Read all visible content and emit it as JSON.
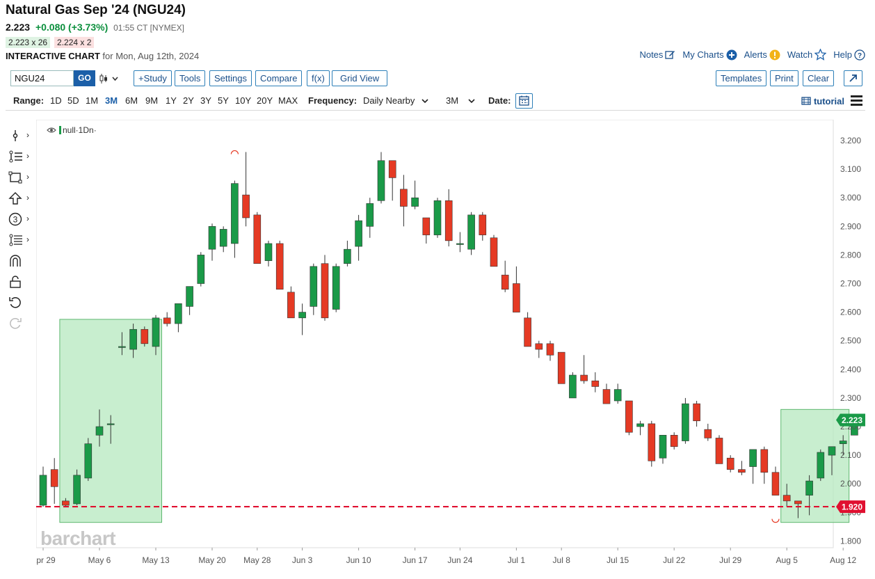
{
  "header": {
    "title": "Natural Gas Sep '24 (NGU24)",
    "last": "2.223",
    "change": "+0.080 (+3.73%)",
    "time_exchange": "01:55 CT [NYMEX]",
    "bid": "2.223 x 26",
    "ask": "2.224 x 2",
    "chart_label": "INTERACTIVE CHART",
    "chart_for": "for Mon, Aug 12th, 2024"
  },
  "top_links": [
    "Notes",
    "My Charts",
    "Alerts",
    "Watch",
    "Help"
  ],
  "toolbar": {
    "symbol": "NGU24",
    "go": "GO",
    "buttons": [
      "+Study",
      "Tools",
      "Settings",
      "Compare",
      "f(x)",
      "Grid View"
    ],
    "right_buttons": [
      "Templates",
      "Print",
      "Clear"
    ]
  },
  "range_bar": {
    "range_label": "Range:",
    "ranges": [
      "1D",
      "5D",
      "1M",
      "3M",
      "6M",
      "9M",
      "1Y",
      "2Y",
      "3Y",
      "5Y",
      "10Y",
      "20Y",
      "MAX"
    ],
    "active_range": "3M",
    "frequency_label": "Frequency:",
    "frequency": "Daily Nearby",
    "period": "3M",
    "date_label": "Date:",
    "tutorial": "tutorial"
  },
  "icons": {
    "left_tools": [
      "crosshair-icon",
      "trend-lines-icon",
      "shapes-icon",
      "arrow-up-icon",
      "counter-icon",
      "fibonacci-icon",
      "magnet-icon",
      "lock-icon",
      "undo-icon",
      "redo-icon"
    ]
  },
  "chart_data": {
    "type": "candlestick",
    "legend_label": "null·1Dn·",
    "watermark": "barchart",
    "colors": {
      "up": "#1a9a48",
      "down": "#e53a24",
      "last_price_bg": "#1a9a48",
      "support_line": "#e01030",
      "zone_fill": "#b6e8bf",
      "zone_border": "#5fb870"
    },
    "y_axis": {
      "min": 1.8,
      "max": 3.2,
      "ticks": [
        "3.200",
        "3.100",
        "3.000",
        "2.900",
        "2.800",
        "2.700",
        "2.600",
        "2.500",
        "2.400",
        "2.300",
        "2.200",
        "2.100",
        "2.000",
        "1.900",
        "1.800"
      ]
    },
    "x_axis_labels": [
      {
        "index": 0,
        "label": "Apr 29"
      },
      {
        "index": 5,
        "label": "May 6"
      },
      {
        "index": 10,
        "label": "May 13"
      },
      {
        "index": 15,
        "label": "May 20"
      },
      {
        "index": 19,
        "label": "May 28"
      },
      {
        "index": 23,
        "label": "Jun 3"
      },
      {
        "index": 28,
        "label": "Jun 10"
      },
      {
        "index": 33,
        "label": "Jun 17"
      },
      {
        "index": 37,
        "label": "Jun 24"
      },
      {
        "index": 42,
        "label": "Jul 1"
      },
      {
        "index": 46,
        "label": "Jul 8"
      },
      {
        "index": 51,
        "label": "Jul 15"
      },
      {
        "index": 56,
        "label": "Jul 22"
      },
      {
        "index": 61,
        "label": "Jul 29"
      },
      {
        "index": 66,
        "label": "Aug 5"
      },
      {
        "index": 71,
        "label": "Aug 12"
      }
    ],
    "candles": [
      {
        "o": 1.925,
        "h": 2.06,
        "l": 1.92,
        "c": 2.03
      },
      {
        "o": 2.05,
        "h": 2.09,
        "l": 1.93,
        "c": 1.99
      },
      {
        "o": 1.94,
        "h": 1.95,
        "l": 1.92,
        "c": 1.925
      },
      {
        "o": 1.93,
        "h": 2.05,
        "l": 1.925,
        "c": 2.03
      },
      {
        "o": 2.02,
        "h": 2.16,
        "l": 2.01,
        "c": 2.14
      },
      {
        "o": 2.17,
        "h": 2.26,
        "l": 2.13,
        "c": 2.2
      },
      {
        "o": 2.21,
        "h": 2.24,
        "l": 2.14,
        "c": 2.21
      },
      {
        "o": 2.48,
        "h": 2.53,
        "l": 2.45,
        "c": 2.48
      },
      {
        "o": 2.47,
        "h": 2.56,
        "l": 2.44,
        "c": 2.54
      },
      {
        "o": 2.54,
        "h": 2.55,
        "l": 2.48,
        "c": 2.49
      },
      {
        "o": 2.48,
        "h": 2.59,
        "l": 2.45,
        "c": 2.58
      },
      {
        "o": 2.58,
        "h": 2.6,
        "l": 2.55,
        "c": 2.56
      },
      {
        "o": 2.56,
        "h": 2.63,
        "l": 2.53,
        "c": 2.63
      },
      {
        "o": 2.62,
        "h": 2.69,
        "l": 2.59,
        "c": 2.69
      },
      {
        "o": 2.7,
        "h": 2.81,
        "l": 2.69,
        "c": 2.8
      },
      {
        "o": 2.82,
        "h": 2.91,
        "l": 2.78,
        "c": 2.9
      },
      {
        "o": 2.83,
        "h": 2.9,
        "l": 2.81,
        "c": 2.89
      },
      {
        "o": 2.84,
        "h": 3.06,
        "l": 2.79,
        "c": 3.05
      },
      {
        "o": 3.01,
        "h": 3.16,
        "l": 2.9,
        "c": 2.93
      },
      {
        "o": 2.94,
        "h": 2.95,
        "l": 2.77,
        "c": 2.77
      },
      {
        "o": 2.78,
        "h": 2.85,
        "l": 2.76,
        "c": 2.84
      },
      {
        "o": 2.84,
        "h": 2.85,
        "l": 2.68,
        "c": 2.68
      },
      {
        "o": 2.67,
        "h": 2.69,
        "l": 2.58,
        "c": 2.58
      },
      {
        "o": 2.58,
        "h": 2.63,
        "l": 2.52,
        "c": 2.6
      },
      {
        "o": 2.62,
        "h": 2.77,
        "l": 2.59,
        "c": 2.76
      },
      {
        "o": 2.77,
        "h": 2.8,
        "l": 2.57,
        "c": 2.58
      },
      {
        "o": 2.61,
        "h": 2.77,
        "l": 2.6,
        "c": 2.76
      },
      {
        "o": 2.77,
        "h": 2.85,
        "l": 2.76,
        "c": 2.82
      },
      {
        "o": 2.83,
        "h": 2.94,
        "l": 2.78,
        "c": 2.92
      },
      {
        "o": 2.9,
        "h": 3.0,
        "l": 2.86,
        "c": 2.98
      },
      {
        "o": 2.99,
        "h": 3.16,
        "l": 2.98,
        "c": 3.13
      },
      {
        "o": 3.13,
        "h": 3.13,
        "l": 2.99,
        "c": 3.07
      },
      {
        "o": 3.03,
        "h": 3.08,
        "l": 2.9,
        "c": 2.97
      },
      {
        "o": 2.97,
        "h": 3.06,
        "l": 2.96,
        "c": 3.0
      },
      {
        "o": 2.93,
        "h": 2.93,
        "l": 2.84,
        "c": 2.87
      },
      {
        "o": 2.87,
        "h": 3.0,
        "l": 2.86,
        "c": 2.99
      },
      {
        "o": 2.99,
        "h": 3.03,
        "l": 2.83,
        "c": 2.85
      },
      {
        "o": 2.84,
        "h": 2.88,
        "l": 2.81,
        "c": 2.84
      },
      {
        "o": 2.82,
        "h": 2.95,
        "l": 2.8,
        "c": 2.94
      },
      {
        "o": 2.94,
        "h": 2.95,
        "l": 2.85,
        "c": 2.87
      },
      {
        "o": 2.86,
        "h": 2.87,
        "l": 2.76,
        "c": 2.76
      },
      {
        "o": 2.73,
        "h": 2.78,
        "l": 2.67,
        "c": 2.68
      },
      {
        "o": 2.7,
        "h": 2.76,
        "l": 2.6,
        "c": 2.6
      },
      {
        "o": 2.58,
        "h": 2.6,
        "l": 2.48,
        "c": 2.48
      },
      {
        "o": 2.49,
        "h": 2.5,
        "l": 2.44,
        "c": 2.47
      },
      {
        "o": 2.49,
        "h": 2.5,
        "l": 2.43,
        "c": 2.45
      },
      {
        "o": 2.46,
        "h": 2.46,
        "l": 2.35,
        "c": 2.35
      },
      {
        "o": 2.3,
        "h": 2.39,
        "l": 2.3,
        "c": 2.38
      },
      {
        "o": 2.38,
        "h": 2.45,
        "l": 2.35,
        "c": 2.36
      },
      {
        "o": 2.36,
        "h": 2.39,
        "l": 2.32,
        "c": 2.34
      },
      {
        "o": 2.33,
        "h": 2.35,
        "l": 2.28,
        "c": 2.28
      },
      {
        "o": 2.29,
        "h": 2.35,
        "l": 2.28,
        "c": 2.33
      },
      {
        "o": 2.29,
        "h": 2.29,
        "l": 2.17,
        "c": 2.18
      },
      {
        "o": 2.2,
        "h": 2.22,
        "l": 2.17,
        "c": 2.21
      },
      {
        "o": 2.21,
        "h": 2.22,
        "l": 2.06,
        "c": 2.08
      },
      {
        "o": 2.09,
        "h": 2.17,
        "l": 2.07,
        "c": 2.17
      },
      {
        "o": 2.17,
        "h": 2.18,
        "l": 2.12,
        "c": 2.13
      },
      {
        "o": 2.15,
        "h": 2.3,
        "l": 2.14,
        "c": 2.28
      },
      {
        "o": 2.28,
        "h": 2.29,
        "l": 2.2,
        "c": 2.22
      },
      {
        "o": 2.19,
        "h": 2.21,
        "l": 2.15,
        "c": 2.16
      },
      {
        "o": 2.16,
        "h": 2.17,
        "l": 2.07,
        "c": 2.07
      },
      {
        "o": 2.09,
        "h": 2.1,
        "l": 2.04,
        "c": 2.05
      },
      {
        "o": 2.05,
        "h": 2.08,
        "l": 2.03,
        "c": 2.04
      },
      {
        "o": 2.06,
        "h": 2.12,
        "l": 2.0,
        "c": 2.12
      },
      {
        "o": 2.12,
        "h": 2.13,
        "l": 2.0,
        "c": 2.04
      },
      {
        "o": 2.04,
        "h": 2.06,
        "l": 1.96,
        "c": 1.96
      },
      {
        "o": 1.96,
        "h": 2.0,
        "l": 1.92,
        "c": 1.94
      },
      {
        "o": 1.94,
        "h": 1.94,
        "l": 1.88,
        "c": 1.93
      },
      {
        "o": 1.96,
        "h": 2.03,
        "l": 1.89,
        "c": 2.01
      },
      {
        "o": 2.02,
        "h": 2.12,
        "l": 2.01,
        "c": 2.11
      },
      {
        "o": 2.1,
        "h": 2.13,
        "l": 2.03,
        "c": 2.13
      },
      {
        "o": 2.14,
        "h": 2.17,
        "l": 2.1,
        "c": 2.15
      },
      {
        "o": 2.17,
        "h": 2.23,
        "l": 2.17,
        "c": 2.22
      }
    ],
    "zones": [
      {
        "from_index": 2,
        "to_index": 10,
        "low": 1.865,
        "high": 2.575
      },
      {
        "from_index": 66,
        "to_index": 71,
        "low": 1.865,
        "high": 2.26
      }
    ],
    "support_level": 1.92,
    "support_label": "1.920",
    "last_price": 2.223,
    "last_price_label": "2.223",
    "markers": [
      {
        "index": 17,
        "price": 3.16,
        "kind": "high"
      },
      {
        "index": 65,
        "price": 1.87,
        "kind": "low"
      }
    ]
  }
}
